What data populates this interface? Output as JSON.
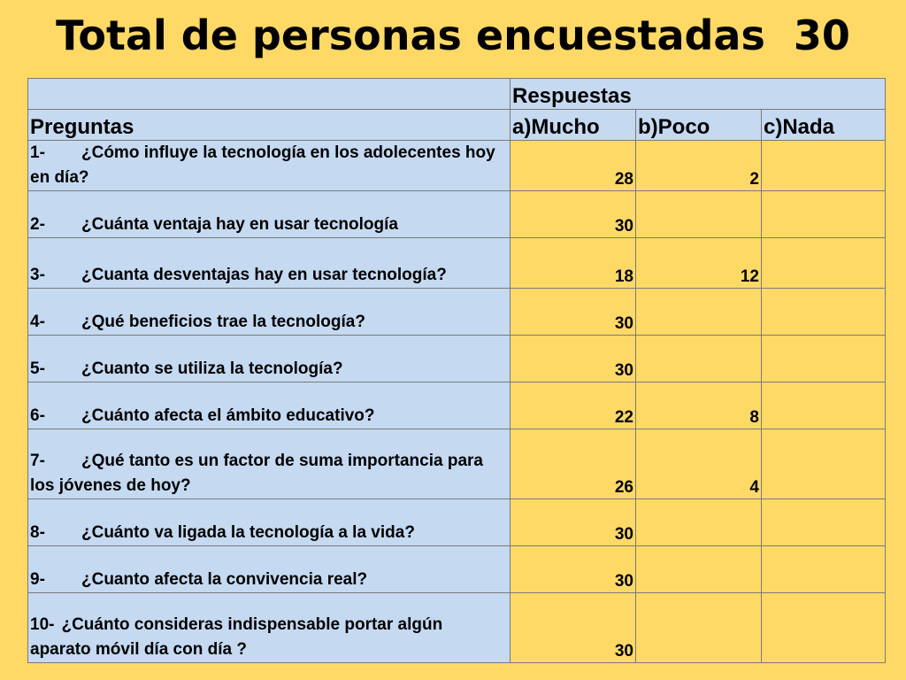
{
  "title": "Total de personas encuestadas  30",
  "table": {
    "group_header": "Respuestas",
    "question_header": "Preguntas",
    "option_headers": [
      "a)Mucho",
      "b)Poco",
      "c)Nada"
    ],
    "rows": [
      {
        "num": "1-",
        "text": "¿Cómo influye la tecnología en los adolecentes hoy en día?",
        "mucho": "28",
        "poco": "2",
        "nada": ""
      },
      {
        "num": "2-",
        "text": "¿Cuánta ventaja hay en usar tecnología",
        "mucho": "30",
        "poco": "",
        "nada": ""
      },
      {
        "num": "3-",
        "text": "¿Cuanta desventajas hay en usar tecnología?",
        "mucho": "18",
        "poco": "12",
        "nada": ""
      },
      {
        "num": "4-",
        "text": "¿Qué beneficios trae la tecnología?",
        "mucho": "30",
        "poco": "",
        "nada": ""
      },
      {
        "num": "5-",
        "text": "¿Cuanto se utiliza la tecnología?",
        "mucho": "30",
        "poco": "",
        "nada": ""
      },
      {
        "num": "6-",
        "text": "¿Cuánto afecta el ámbito educativo?",
        "mucho": "22",
        "poco": "8",
        "nada": ""
      },
      {
        "num": "7-",
        "text": "¿Qué tanto es un factor de suma importancia para los jóvenes de hoy?",
        "mucho": "26",
        "poco": "4",
        "nada": ""
      },
      {
        "num": "8-",
        "text": "¿Cuánto va ligada la tecnología a la vida?",
        "mucho": "30",
        "poco": "",
        "nada": ""
      },
      {
        "num": "9-",
        "text": "¿Cuanto afecta la convivencia real?",
        "mucho": "30",
        "poco": "",
        "nada": ""
      },
      {
        "num": "10-",
        "text": "¿Cuánto consideras indispensable portar algún aparato móvil día con día ?",
        "mucho": "30",
        "poco": "",
        "nada": ""
      }
    ]
  },
  "colors": {
    "background": "#FFD966",
    "header_fill": "#C5D9F1",
    "value_fill": "#FFD966",
    "border": "#7a7a7a"
  }
}
